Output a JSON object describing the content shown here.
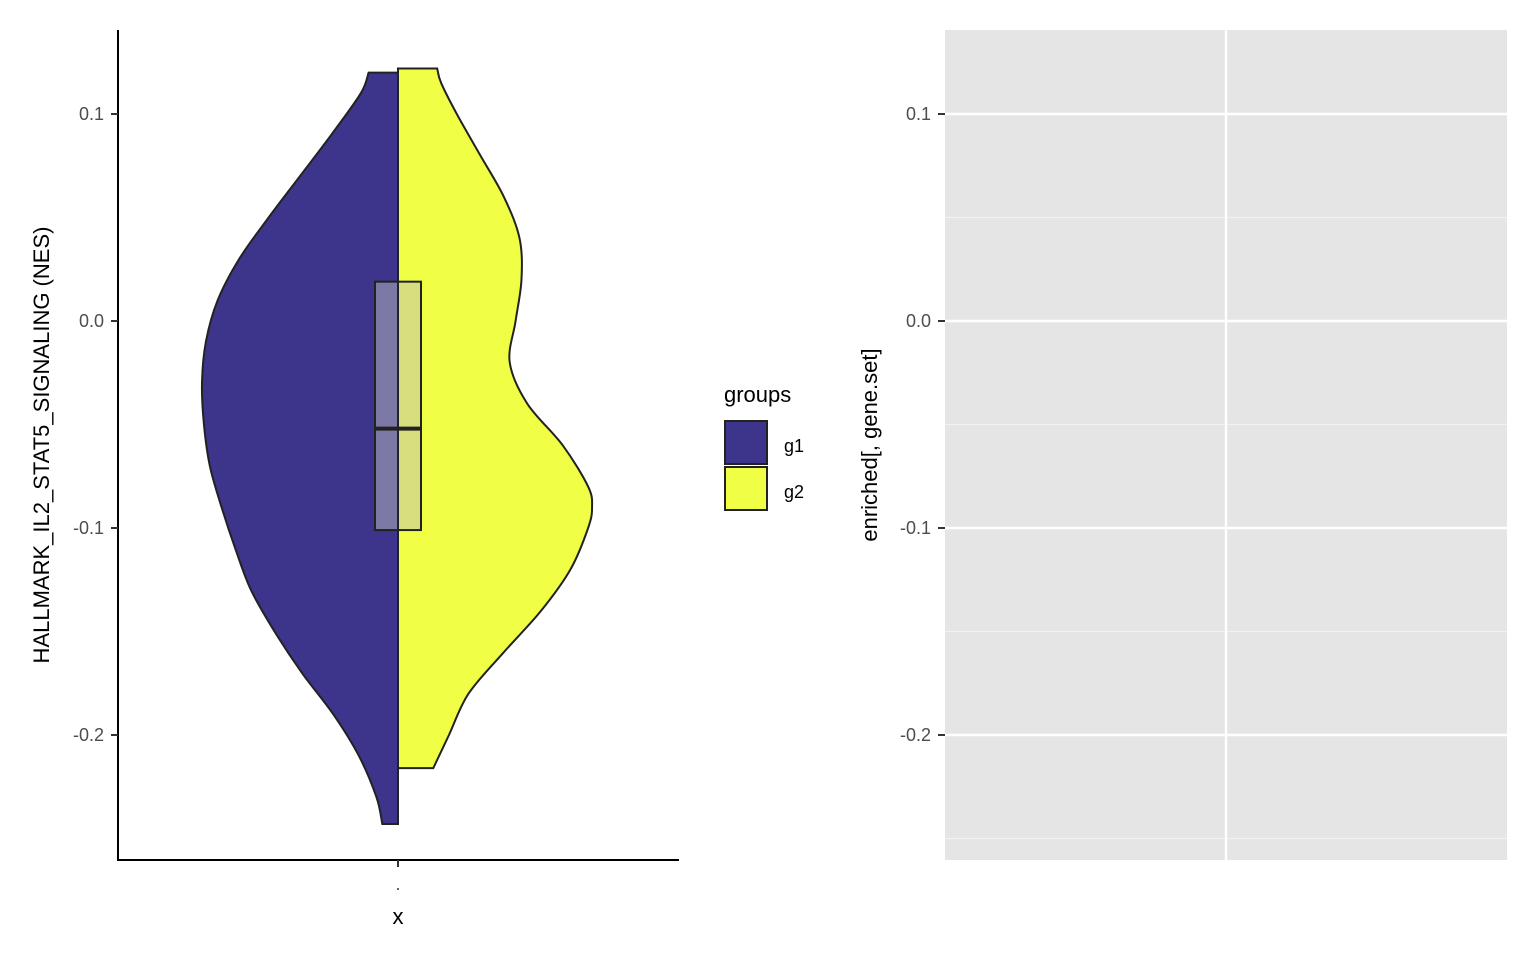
{
  "chart_data": [
    {
      "type": "split-violin",
      "ylabel": "HALLMARK_IL2_STAT5_SIGNALING (NES)",
      "xlabel": "x",
      "x_tick_labels": [
        "."
      ],
      "y_ticks": [
        0.1,
        0.0,
        -0.1,
        -0.2
      ],
      "y_tick_labels": [
        "0.1",
        "0.0",
        "-0.1",
        "-0.2"
      ],
      "ylim": [
        -0.26,
        0.14
      ],
      "legend": {
        "title": "groups",
        "placement": "right",
        "entries": [
          {
            "label": "g1",
            "color": "#3d348b"
          },
          {
            "label": "g2",
            "color": "#f0ff45"
          }
        ]
      },
      "series": [
        {
          "name": "g1",
          "color": "#3d348b",
          "side": "left",
          "y_min": -0.243,
          "y_max": 0.12,
          "density": [
            [
              -0.243,
              0.08
            ],
            [
              -0.23,
              0.11
            ],
            [
              -0.21,
              0.2
            ],
            [
              -0.19,
              0.33
            ],
            [
              -0.17,
              0.49
            ],
            [
              -0.15,
              0.63
            ],
            [
              -0.13,
              0.75
            ],
            [
              -0.11,
              0.83
            ],
            [
              -0.09,
              0.9
            ],
            [
              -0.07,
              0.96
            ],
            [
              -0.05,
              0.99
            ],
            [
              -0.03,
              1.0
            ],
            [
              -0.01,
              0.98
            ],
            [
              0.01,
              0.92
            ],
            [
              0.03,
              0.81
            ],
            [
              0.05,
              0.66
            ],
            [
              0.07,
              0.5
            ],
            [
              0.09,
              0.34
            ],
            [
              0.11,
              0.19
            ],
            [
              0.12,
              0.15
            ]
          ]
        },
        {
          "name": "g2",
          "color": "#f0ff45",
          "side": "right",
          "y_min": -0.216,
          "y_max": 0.122,
          "density": [
            [
              -0.216,
              0.18
            ],
            [
              -0.2,
              0.26
            ],
            [
              -0.18,
              0.36
            ],
            [
              -0.16,
              0.54
            ],
            [
              -0.14,
              0.73
            ],
            [
              -0.12,
              0.88
            ],
            [
              -0.1,
              0.97
            ],
            [
              -0.09,
              0.99
            ],
            [
              -0.08,
              0.97
            ],
            [
              -0.06,
              0.84
            ],
            [
              -0.04,
              0.66
            ],
            [
              -0.02,
              0.57
            ],
            [
              0.0,
              0.6
            ],
            [
              0.02,
              0.63
            ],
            [
              0.04,
              0.62
            ],
            [
              0.06,
              0.54
            ],
            [
              0.08,
              0.42
            ],
            [
              0.1,
              0.3
            ],
            [
              0.115,
              0.22
            ],
            [
              0.122,
              0.2
            ]
          ]
        }
      ],
      "boxplot": {
        "q1": -0.101,
        "median": -0.052,
        "q3": 0.019,
        "fill_left": "#7c79a6",
        "fill_right": "#d8dd7e"
      }
    },
    {
      "type": "blank",
      "ylabel": "enriched[, gene.set]",
      "xlabel": "",
      "y_ticks": [
        0.1,
        0.0,
        -0.1,
        -0.2
      ],
      "y_tick_labels": [
        "0.1",
        "0.0",
        "-0.1",
        "-0.2"
      ],
      "ylim": [
        -0.26,
        0.14
      ],
      "grid": true,
      "background": "#e5e5e5"
    }
  ]
}
